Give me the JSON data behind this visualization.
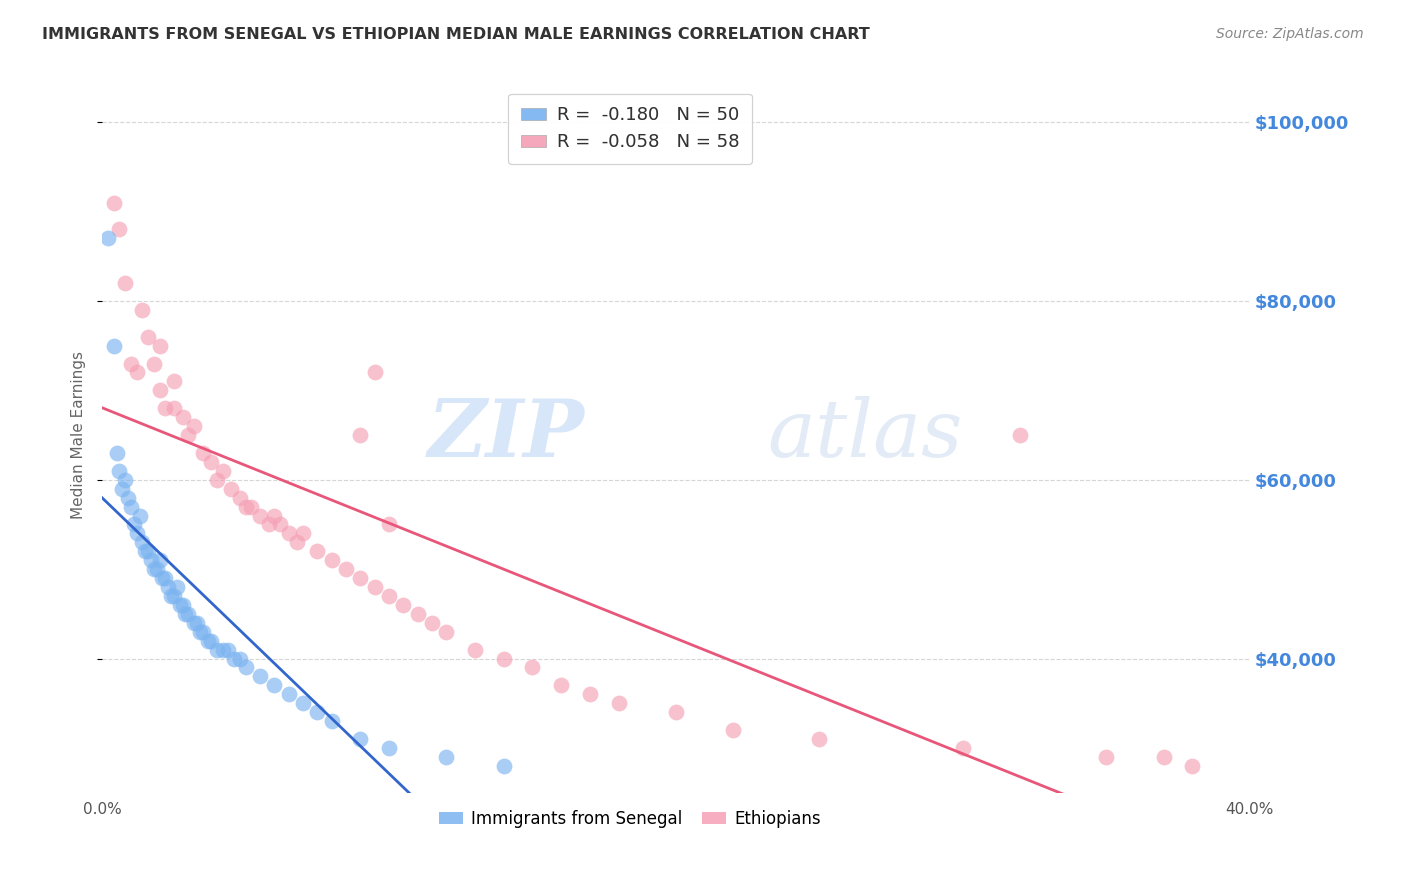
{
  "title": "IMMIGRANTS FROM SENEGAL VS ETHIOPIAN MEDIAN MALE EARNINGS CORRELATION CHART",
  "source": "Source: ZipAtlas.com",
  "ylabel": "Median Male Earnings",
  "xlim": [
    0.0,
    0.4
  ],
  "ylim": [
    25000,
    105000
  ],
  "yticks": [
    40000,
    60000,
    80000,
    100000
  ],
  "xticks": [
    0.0,
    0.1,
    0.2,
    0.3,
    0.4
  ],
  "xtick_labels": [
    "0.0%",
    "",
    "",
    "",
    "40.0%"
  ],
  "ytick_labels": [
    "$40,000",
    "$60,000",
    "$80,000",
    "$100,000"
  ],
  "legend_R_senegal": "-0.180",
  "legend_N_senegal": "50",
  "legend_R_ethiopian": "-0.058",
  "legend_N_ethiopian": "58",
  "color_senegal": "#7bb3f0",
  "color_ethiopian": "#f5a0b5",
  "line_color_senegal": "#3366cc",
  "line_color_ethiopian": "#e8567a",
  "line_color_dashed": "#aac4e0",
  "watermark_zip": "ZIP",
  "watermark_atlas": "atlas",
  "background_color": "#ffffff",
  "grid_color": "#cccccc",
  "axis_label_color": "#4488dd",
  "title_color": "#333333",
  "senegal_x": [
    0.002,
    0.004,
    0.005,
    0.006,
    0.007,
    0.008,
    0.009,
    0.01,
    0.011,
    0.012,
    0.013,
    0.014,
    0.015,
    0.016,
    0.017,
    0.018,
    0.019,
    0.02,
    0.021,
    0.022,
    0.023,
    0.024,
    0.025,
    0.026,
    0.027,
    0.028,
    0.029,
    0.03,
    0.032,
    0.033,
    0.034,
    0.035,
    0.037,
    0.038,
    0.04,
    0.042,
    0.044,
    0.046,
    0.048,
    0.05,
    0.055,
    0.06,
    0.065,
    0.07,
    0.075,
    0.08,
    0.09,
    0.1,
    0.12,
    0.14
  ],
  "senegal_y": [
    87000,
    75000,
    63000,
    61000,
    59000,
    60000,
    58000,
    57000,
    55000,
    54000,
    56000,
    53000,
    52000,
    52000,
    51000,
    50000,
    50000,
    51000,
    49000,
    49000,
    48000,
    47000,
    47000,
    48000,
    46000,
    46000,
    45000,
    45000,
    44000,
    44000,
    43000,
    43000,
    42000,
    42000,
    41000,
    41000,
    41000,
    40000,
    40000,
    39000,
    38000,
    37000,
    36000,
    35000,
    34000,
    33000,
    31000,
    30000,
    29000,
    28000
  ],
  "ethiopian_x": [
    0.004,
    0.006,
    0.008,
    0.01,
    0.012,
    0.014,
    0.016,
    0.018,
    0.02,
    0.022,
    0.025,
    0.028,
    0.03,
    0.032,
    0.035,
    0.038,
    0.04,
    0.042,
    0.045,
    0.048,
    0.05,
    0.052,
    0.055,
    0.058,
    0.06,
    0.062,
    0.065,
    0.068,
    0.07,
    0.075,
    0.08,
    0.085,
    0.09,
    0.095,
    0.1,
    0.105,
    0.11,
    0.115,
    0.12,
    0.13,
    0.14,
    0.15,
    0.16,
    0.17,
    0.18,
    0.2,
    0.22,
    0.25,
    0.3,
    0.35,
    0.37,
    0.38,
    0.02,
    0.025,
    0.09,
    0.095,
    0.1,
    0.32
  ],
  "ethiopian_y": [
    91000,
    88000,
    82000,
    73000,
    72000,
    79000,
    76000,
    73000,
    70000,
    68000,
    71000,
    67000,
    65000,
    66000,
    63000,
    62000,
    60000,
    61000,
    59000,
    58000,
    57000,
    57000,
    56000,
    55000,
    56000,
    55000,
    54000,
    53000,
    54000,
    52000,
    51000,
    50000,
    49000,
    48000,
    47000,
    46000,
    45000,
    44000,
    43000,
    41000,
    40000,
    39000,
    37000,
    36000,
    35000,
    34000,
    32000,
    31000,
    30000,
    29000,
    29000,
    28000,
    75000,
    68000,
    65000,
    72000,
    55000,
    65000
  ]
}
